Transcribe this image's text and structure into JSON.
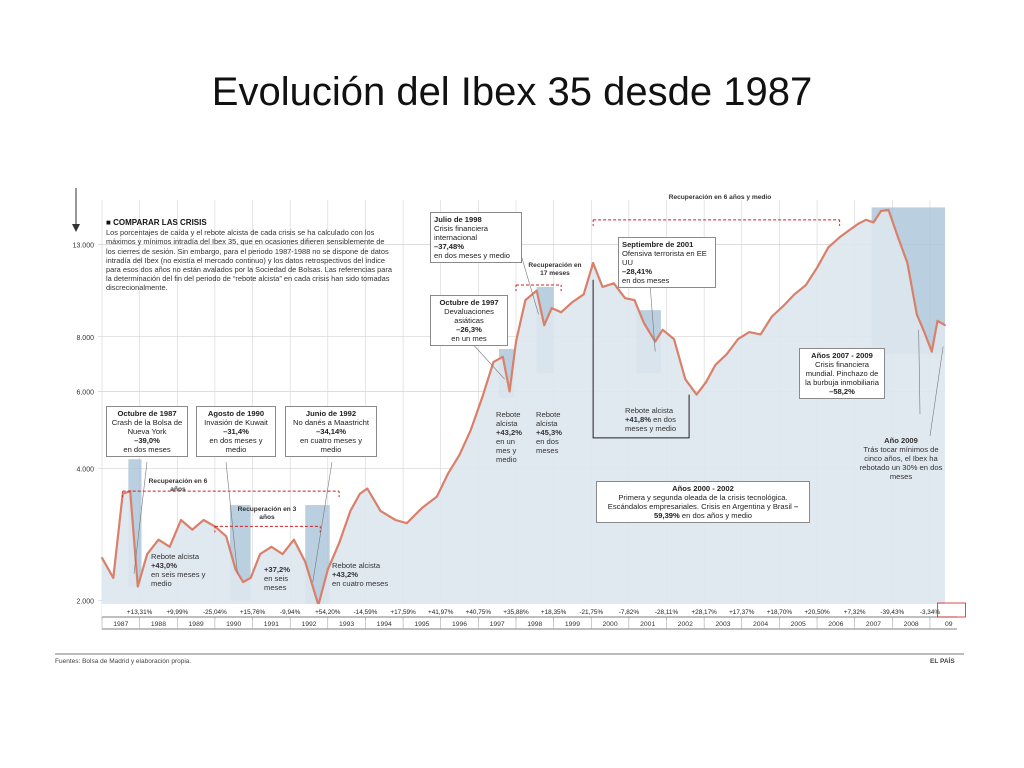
{
  "title": "Evolución del Ibex 35 desde 1987",
  "intro": {
    "heading": "COMPARAR LAS CRISIS",
    "text": "Los porcentajes de caída y el rebote alcista de cada crisis se ha calculado con los máximos y mínimos intradía del Ibex 35, que en ocasiones difieren sensiblemente de los cierres de sesión. Sin embargo, para el periodo 1987-1988 no se dispone de datos intradía del Ibex (no existía el mercado continuo) y los datos retrospectivos del índice para esos dos años no están avalados por la Sociedad de Bolsas. Las referencias para la determinación del fin del periodo de “rebote alcista” en cada crisis han sido tomadas discrecionalmente."
  },
  "annotations": {
    "oct1987": {
      "head": "Octubre de 1987",
      "body": "Crash de la Bolsa de Nueva York",
      "value": "–39,0%",
      "tail": "en dos meses"
    },
    "aug1990": {
      "head": "Agosto de 1990",
      "body": "Invasión de Kuwait",
      "value": "–31,4%",
      "tail": "en dos meses y medio"
    },
    "jun1992": {
      "head": "Junio de 1992",
      "body": "No danés a Maastricht",
      "value": "–34,14%",
      "tail": "en cuatro meses y medio"
    },
    "oct1997": {
      "head": "Octubre de 1997",
      "body": "Devaluaciones asiáticas",
      "value": "–26,3%",
      "tail": "en un mes"
    },
    "jul1998": {
      "head": "Julio de 1998",
      "body": "Crisis financiera internacional",
      "value": "–37,48%",
      "tail": "en dos meses y medio"
    },
    "sep2001": {
      "head": "Septiembre de 2001",
      "body": "Ofensiva terrorista en EE UU",
      "value": "–28,41%",
      "tail": "en dos meses"
    },
    "y2007": {
      "head": "Años 2007 - 2009",
      "body": "Crisis financiera mundial. Pinchazo de la burbuja inmobiliaria",
      "value": "–58,2%",
      "tail": ""
    },
    "y2000": {
      "head": "Años 2000 - 2002",
      "body": "Primera y segunda oleada de la crisis tecnológica. Escándalos empresariales. Crisis en Argentina y Brasil",
      "value": "–59,39%",
      "tail": "en dos años y medio"
    },
    "y2009": {
      "head": "Año 2009",
      "body": "Trás tocar mínimos de cinco años, el Ibex ha rebotado un 30% en dos meses",
      "value": "",
      "tail": ""
    }
  },
  "rebounds": {
    "r1987": {
      "label": "Rebote alcista",
      "value": "+43,0%",
      "tail": "en seis meses y medio"
    },
    "r1990": {
      "label": "",
      "value": "+37,2%",
      "tail": "en seis meses"
    },
    "r1992": {
      "label": "Rebote alcista",
      "value": "+43,2%",
      "tail": "en cuatro meses"
    },
    "r1997": {
      "label": "Rebote alcista",
      "value": "+43,2%",
      "tail": "en un mes y medio"
    },
    "r1998": {
      "label": "Rebote alcista",
      "value": "+45,3%",
      "tail": "en dos meses"
    },
    "r2001": {
      "label": "Rebote alcista",
      "value": "+41,8%",
      "tail": "en dos meses y medio"
    }
  },
  "recoveries": {
    "rec1": "Recuperación en 6 años",
    "rec2": "Recuperación en 3 años",
    "rec3": "Recuperación en 17 meses",
    "rec4": "Recuperación en 6 años y medio"
  },
  "footer": {
    "source": "Fuentes: Bolsa de Madrid y elaboración propia.",
    "brand": "EL PAÍS"
  },
  "colors": {
    "line": "#d9806a",
    "area": "#dde6ee",
    "crisis_band": "#a9c3d7",
    "recovery": "#d11f1f"
  },
  "chart_data": {
    "type": "line",
    "title": "Evolución del Ibex 35 desde 1987",
    "xlabel": "",
    "ylabel": "",
    "y_scale": "log",
    "ylim": [
      1900,
      16000
    ],
    "xlim": [
      1987.0,
      2009.4
    ],
    "y_ticks": [
      {
        "value": 2000,
        "label": "2.000"
      },
      {
        "value": 4000,
        "label": "4.000"
      },
      {
        "value": 6000,
        "label": "6.000"
      },
      {
        "value": 8000,
        "label": "8.000"
      },
      {
        "value": 13000,
        "label": "13.000"
      }
    ],
    "years": [
      "1987",
      "1988",
      "1989",
      "1990",
      "1991",
      "1992",
      "1993",
      "1994",
      "1995",
      "1996",
      "1997",
      "1998",
      "1999",
      "2000",
      "2001",
      "2002",
      "2003",
      "2004",
      "2005",
      "2006",
      "2007",
      "2008",
      "09"
    ],
    "annual_changes": [
      "+13,31%",
      "+9,99%",
      "-25,04%",
      "+15,76%",
      "-9,94%",
      "+54,20%",
      "-14,59%",
      "+17,59%",
      "+41,97%",
      "+40,75%",
      "+35,88%",
      "+18,35%",
      "-21,75%",
      "-7,82%",
      "-28,11%",
      "+28,17%",
      "+17,37%",
      "+18,70%",
      "+20,50%",
      "+7,32%",
      "-39,43%",
      "-3,34%"
    ],
    "series": [
      {
        "x": [
          1987.0,
          1987.3,
          1987.55,
          1987.75,
          1987.95,
          1988.2,
          1988.5,
          1988.8,
          1989.1,
          1989.4,
          1989.7,
          1990.0,
          1990.3,
          1990.55,
          1990.75,
          1990.95,
          1991.2,
          1991.5,
          1991.8,
          1992.1,
          1992.4,
          1992.75,
          1993.0,
          1993.3,
          1993.6,
          1993.85,
          1994.05,
          1994.4,
          1994.8,
          1995.1,
          1995.5,
          1995.9,
          1996.2,
          1996.5,
          1996.8,
          1997.1,
          1997.4,
          1997.65,
          1997.83,
          1998.0,
          1998.25,
          1998.55,
          1998.75,
          1998.95,
          1999.2,
          1999.5,
          1999.8,
          2000.05,
          2000.3,
          2000.6,
          2000.9,
          2001.15,
          2001.4,
          2001.7,
          2001.9,
          2002.2,
          2002.5,
          2002.8,
          2003.05,
          2003.3,
          2003.6,
          2003.9,
          2004.2,
          2004.5,
          2004.8,
          2005.1,
          2005.4,
          2005.7,
          2006.0,
          2006.3,
          2006.6,
          2006.9,
          2007.1,
          2007.3,
          2007.5,
          2007.7,
          2007.9,
          2008.15,
          2008.4,
          2008.65,
          2008.85,
          2009.05,
          2009.2,
          2009.4
        ],
        "y": [
          2500,
          2250,
          3500,
          3550,
          2150,
          2550,
          2750,
          2650,
          3050,
          2900,
          3050,
          2950,
          2800,
          2350,
          2200,
          2250,
          2550,
          2650,
          2550,
          2750,
          2450,
          1950,
          2350,
          2700,
          3200,
          3500,
          3600,
          3200,
          3050,
          3000,
          3250,
          3450,
          3900,
          4300,
          4900,
          5800,
          7000,
          7200,
          6000,
          7800,
          9700,
          10200,
          8500,
          9300,
          9100,
          9600,
          10000,
          11800,
          10400,
          10600,
          9800,
          9700,
          8600,
          7800,
          8300,
          7900,
          6400,
          5900,
          6300,
          6900,
          7300,
          7900,
          8200,
          8100,
          8900,
          9400,
          10000,
          10500,
          11500,
          12800,
          13500,
          14100,
          14500,
          14800,
          14600,
          15500,
          15600,
          13500,
          11800,
          9000,
          8200,
          7400,
          8700,
          8500
        ]
      }
    ]
  }
}
